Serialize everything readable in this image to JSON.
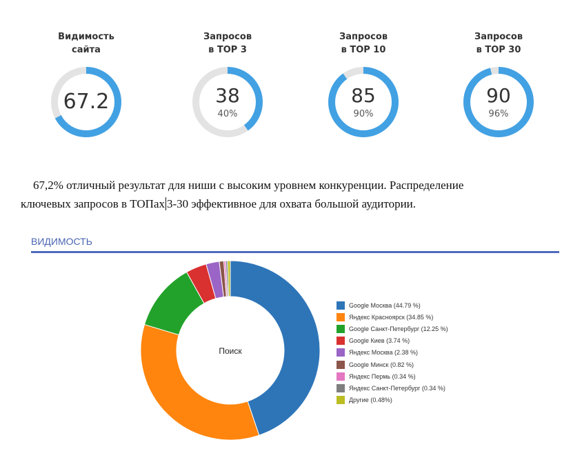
{
  "kpis": [
    {
      "title_lines": [
        "Видимость",
        "сайта"
      ],
      "value": "67.2",
      "percent_label": "",
      "fill": 0.672
    },
    {
      "title_lines": [
        "Запросов",
        "в TOP 3"
      ],
      "value": "38",
      "percent_label": "40%",
      "fill": 0.4
    },
    {
      "title_lines": [
        "Запросов",
        "в TOP 10"
      ],
      "value": "85",
      "percent_label": "90%",
      "fill": 0.9
    },
    {
      "title_lines": [
        "Запросов",
        "в TOP 30"
      ],
      "value": "90",
      "percent_label": "96%",
      "fill": 0.96
    }
  ],
  "gauge_colors": {
    "fill": "#42a1e3",
    "track": "#e3e3e3"
  },
  "note": {
    "line1": "67,2% отличный результат для ниши с высоким уровнем конкуренции. Распределение",
    "line2_part1": "ключевых запросов в ТОПах",
    "line2_part2": "3-30 эффективное для охвата большой аудитории."
  },
  "section": {
    "title": "ВИДИМОСТЬ",
    "accent_color": "#4e6bbd"
  },
  "chart_data": {
    "type": "pie",
    "center_label": "Поиск",
    "slices": [
      {
        "label": "Google Москва (44.79 %)",
        "value": 44.79,
        "color": "#2e75b8"
      },
      {
        "label": "Яндекс Красноярск (34.85 %)",
        "value": 34.85,
        "color": "#ff850e"
      },
      {
        "label": "Google Санкт-Петербург (12.25 %)",
        "value": 12.25,
        "color": "#22a22a"
      },
      {
        "label": "Google Киев (3.74 %)",
        "value": 3.74,
        "color": "#d93030"
      },
      {
        "label": "Яндекс Москва (2.38 %)",
        "value": 2.38,
        "color": "#9a65c6"
      },
      {
        "label": "Google Минск (0.82 %)",
        "value": 0.82,
        "color": "#8c564b"
      },
      {
        "label": "Яндекс Пермь (0.34 %)",
        "value": 0.34,
        "color": "#e377c2"
      },
      {
        "label": "Яндекс Санкт-Петербург (0.34 %)",
        "value": 0.34,
        "color": "#7f7f7f"
      },
      {
        "label": "Другие (0.48%)",
        "value": 0.48,
        "color": "#bcbd22"
      }
    ],
    "legend_position": "right"
  }
}
